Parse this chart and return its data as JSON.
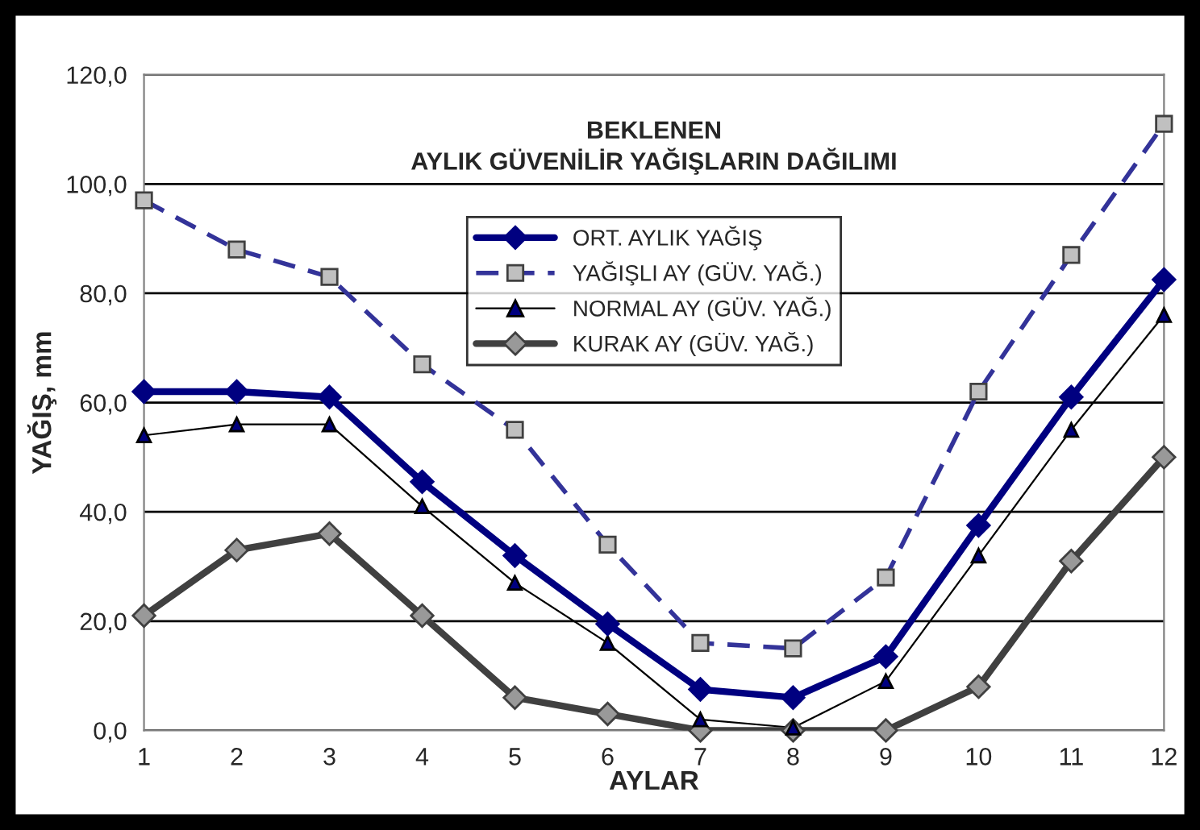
{
  "chart_data": {
    "type": "line",
    "title": "BEKLENEN\nAYLIK GÜVENİLİR YAĞIŞLARIN DAĞILIMI",
    "xlabel": "AYLAR",
    "ylabel": "YAĞIŞ, mm",
    "x": [
      1,
      2,
      3,
      4,
      5,
      6,
      7,
      8,
      9,
      10,
      11,
      12
    ],
    "series": [
      {
        "name": "ORT. AYLIK YAĞIŞ",
        "color": "#000080",
        "marker": "diamond",
        "line_style": "solid",
        "values": [
          62,
          62,
          61,
          45.5,
          32,
          19.5,
          7.5,
          6,
          13.5,
          37.5,
          61,
          82.5
        ]
      },
      {
        "name": "YAĞIŞLI AY (GÜV. YAĞ.)",
        "color": "#333399",
        "marker": "square",
        "line_style": "dashed",
        "values": [
          97,
          88,
          83,
          67,
          55,
          34,
          16,
          15,
          28,
          62,
          87,
          111
        ]
      },
      {
        "name": "NORMAL AY (GÜV. YAĞ.)",
        "color": "#000000",
        "marker": "triangle",
        "line_style": "solid",
        "values": [
          54,
          56,
          56,
          41,
          27,
          16,
          2,
          0.5,
          9,
          32,
          55,
          76
        ]
      },
      {
        "name": "KURAK AY (GÜV. YAĞ.)",
        "color": "#404040",
        "marker": "diamond",
        "line_style": "solid",
        "values": [
          21,
          33,
          36,
          21,
          6,
          3,
          0,
          0,
          0,
          8,
          31,
          50
        ]
      }
    ],
    "xlim": [
      1,
      12
    ],
    "xticks": [
      1,
      2,
      3,
      4,
      5,
      6,
      7,
      8,
      9,
      10,
      11,
      12
    ],
    "ylim": [
      0,
      120
    ],
    "yticks": [
      {
        "value": 0,
        "label": "0,0"
      },
      {
        "value": 20,
        "label": "20,0"
      },
      {
        "value": 40,
        "label": "40,0"
      },
      {
        "value": 60,
        "label": "60,0"
      },
      {
        "value": 80,
        "label": "80,0"
      },
      {
        "value": 100,
        "label": "100,0"
      },
      {
        "value": 120,
        "label": "120,0"
      }
    ],
    "grid": "y",
    "legend": "top"
  }
}
